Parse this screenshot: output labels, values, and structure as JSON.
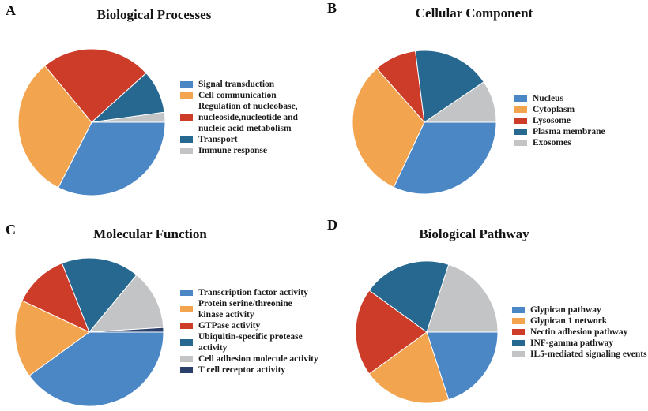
{
  "palette": {
    "blue": "#4B86C5",
    "orange": "#F2A44E",
    "red": "#CD3C28",
    "teal": "#26688F",
    "gray": "#C3C4C6",
    "navy": "#2B3F6B"
  },
  "chart_data": [
    {
      "type": "pie",
      "panel": "A",
      "title": "Biological Processes",
      "start_angle_deg": 0,
      "direction": "clockwise",
      "legend_position": "right",
      "values_are_percent_estimates": true,
      "slices": [
        {
          "label": "Signal transduction",
          "value": 32.5,
          "color": "#4B86C5"
        },
        {
          "label": "Cell communication",
          "value": 31.5,
          "color": "#F2A44E"
        },
        {
          "label": "Regulation of nucleobase, nucleoside,nucleotide and nucleic acid metabolism",
          "label_lines": [
            "Regulation of nucleobase,",
            "nucleoside,nucleotide and",
            "nucleic acid metabolism"
          ],
          "value": 24.3,
          "color": "#CD3C28"
        },
        {
          "label": "Transport",
          "value": 9.5,
          "color": "#26688F"
        },
        {
          "label": "Immune response",
          "value": 2.2,
          "color": "#C3C4C6"
        }
      ]
    },
    {
      "type": "pie",
      "panel": "B",
      "title": "Cellular Component",
      "start_angle_deg": 0,
      "direction": "clockwise",
      "legend_position": "right",
      "values_are_percent_estimates": true,
      "slices": [
        {
          "label": "Nucleus",
          "value": 32,
          "color": "#4B86C5"
        },
        {
          "label": "Cytoplasm",
          "value": 31.5,
          "color": "#F2A44E"
        },
        {
          "label": "Lysosome",
          "value": 9.5,
          "color": "#CD3C28"
        },
        {
          "label": "Plasma membrane",
          "value": 17.5,
          "color": "#26688F"
        },
        {
          "label": "Exosomes",
          "value": 9.5,
          "color": "#C3C4C6"
        }
      ]
    },
    {
      "type": "pie",
      "panel": "C",
      "title": "Molecular Function",
      "start_angle_deg": 0,
      "direction": "clockwise",
      "legend_position": "right",
      "values_are_percent_estimates": true,
      "slices": [
        {
          "label": "Transcription factor activity",
          "value": 40,
          "color": "#4B86C5"
        },
        {
          "label": "Protein serine/threonine kinase activity",
          "label_lines": [
            "Protein serine/threonine",
            "kinase activity"
          ],
          "value": 17,
          "color": "#F2A44E"
        },
        {
          "label": "GTPase activity",
          "value": 12,
          "color": "#CD3C28"
        },
        {
          "label": "Ubiquitin-specific protease activity",
          "label_lines": [
            "Ubiquitin-specific protease",
            "activity"
          ],
          "value": 17,
          "color": "#26688F"
        },
        {
          "label": "Cell adhesion molecule activity",
          "value": 13,
          "color": "#C3C4C6"
        },
        {
          "label": "T cell receptor activity",
          "value": 1,
          "color": "#2B3F6B"
        }
      ]
    },
    {
      "type": "pie",
      "panel": "D",
      "title": "Biological Pathway",
      "start_angle_deg": 0,
      "direction": "clockwise",
      "legend_position": "right",
      "values_are_percent_estimates": true,
      "slices": [
        {
          "label": "Glypican pathway",
          "value": 20,
          "color": "#4B86C5"
        },
        {
          "label": "Glypican 1 network",
          "value": 20,
          "color": "#F2A44E"
        },
        {
          "label": "Nectin adhesion pathway",
          "value": 20,
          "color": "#CD3C28"
        },
        {
          "label": "INF-gamma pathway",
          "value": 20,
          "color": "#26688F"
        },
        {
          "label": "IL5-mediated signaling events",
          "value": 20,
          "color": "#C3C4C6"
        }
      ]
    }
  ]
}
